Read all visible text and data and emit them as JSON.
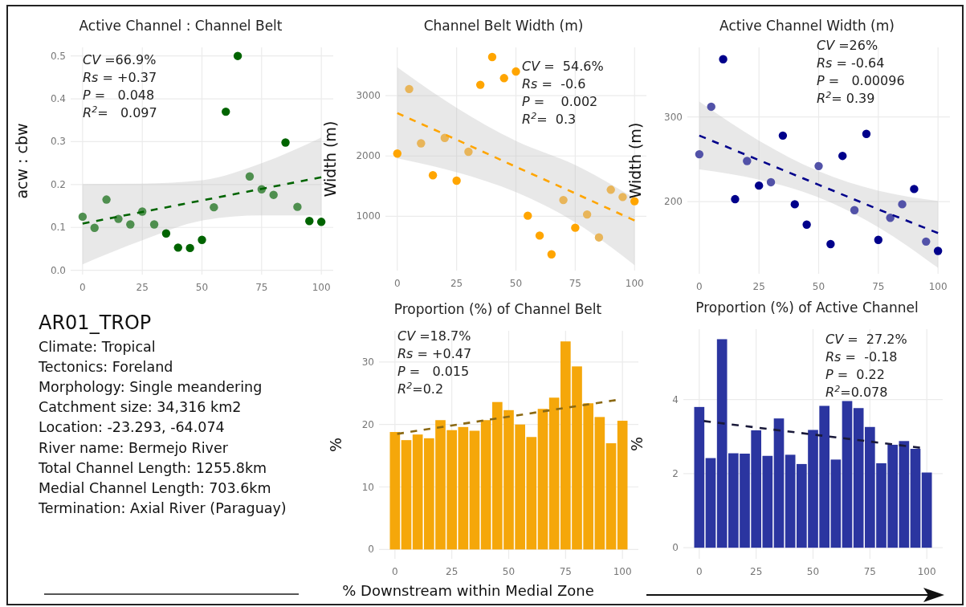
{
  "chart_data": [
    {
      "type": "scatter",
      "title": "Active Channel : Channel Belt",
      "ylabel": "acw : cbw",
      "xlim": [
        -5,
        105
      ],
      "ylim": [
        -0.01,
        0.52
      ],
      "xticks": [
        0,
        25,
        50,
        75,
        100
      ],
      "yticks": [
        {
          "value": 0,
          "label": "0.0"
        },
        0.1,
        0.2,
        0.3,
        0.4,
        0.5
      ],
      "grid": true,
      "annotations": [
        "CV =66.9%",
        "Rs = +0.37",
        "P =   0.048",
        "R$^{2}$=   0.097"
      ],
      "series": [
        {
          "type": "scatter",
          "marker": "circle",
          "x": [
            0,
            5,
            10,
            15,
            20,
            25,
            30,
            35,
            40,
            45,
            50,
            55,
            60,
            65,
            70,
            75,
            80,
            85,
            90,
            95,
            100
          ],
          "values": [
            0.125,
            0.099,
            0.165,
            0.12,
            0.107,
            0.137,
            0.107,
            0.086,
            0.053,
            0.052,
            0.071,
            0.147,
            0.37,
            0.5,
            0.219,
            0.189,
            0.176,
            0.298,
            0.148,
            0.115,
            0.113
          ],
          "colors": [
            "#4f8f4f",
            "#4f8f4f",
            "#4f8f4f",
            "#4f8f4f",
            "#4f8f4f",
            "#4f8f4f",
            "#4f8f4f",
            "#006400",
            "#006400",
            "#006400",
            "#006400",
            "#4f8f4f",
            "#006400",
            "#006400",
            "#4f8f4f",
            "#4f8f4f",
            "#4f8f4f",
            "#006400",
            "#4f8f4f",
            "#006400",
            "#006400"
          ]
        },
        {
          "type": "line",
          "line_style": "dashed",
          "color": "#006400",
          "x": [
            0,
            25,
            50,
            75,
            100
          ],
          "values": [
            0.109,
            0.136,
            0.163,
            0.19,
            0.217
          ],
          "lower": [
            0.014,
            0.07,
            0.116,
            0.128,
            0.128
          ],
          "upper": [
            0.201,
            0.202,
            0.21,
            0.25,
            0.31
          ]
        }
      ]
    },
    {
      "type": "scatter",
      "title": "Channel Belt Width (m)",
      "ylabel": "Width (m)",
      "xlim": [
        -5,
        105
      ],
      "ylim": [
        100,
        3800
      ],
      "xticks": [
        0,
        25,
        50,
        75,
        100
      ],
      "yticks": [
        1000,
        2000,
        3000
      ],
      "grid": true,
      "annotations": [
        "CV =  54.6%",
        "Rs =  -0.6",
        "P =    0.002",
        "R$^{2}$=  0.3"
      ],
      "series": [
        {
          "type": "scatter",
          "marker": "circle",
          "x": [
            0,
            5,
            10,
            15,
            20,
            25,
            30,
            35,
            40,
            45,
            50,
            55,
            60,
            65,
            70,
            75,
            80,
            85,
            90,
            95,
            100
          ],
          "values": [
            2040,
            3110,
            2210,
            1680,
            2300,
            1590,
            2070,
            3180,
            3640,
            3290,
            3400,
            1010,
            680,
            370,
            1270,
            810,
            1030,
            650,
            1440,
            1320,
            1250
          ],
          "colors": [
            "#ffa500",
            "#e8b55a",
            "#e8b55a",
            "#ffa500",
            "#e8b55a",
            "#ffa500",
            "#e8b55a",
            "#ffa500",
            "#ffa500",
            "#ffa500",
            "#ffa500",
            "#ffa500",
            "#ffa500",
            "#ffa500",
            "#e8b55a",
            "#ffa500",
            "#e8b55a",
            "#e8b55a",
            "#e8b55a",
            "#e8b55a",
            "#ffa500"
          ]
        },
        {
          "type": "line",
          "line_style": "dashed",
          "color": "#ffa500",
          "x": [
            0,
            25,
            50,
            75,
            100
          ],
          "values": [
            2710,
            2270,
            1820,
            1380,
            930
          ],
          "lower": [
            1960,
            1730,
            1400,
            900,
            190
          ],
          "upper": [
            3470,
            2800,
            2250,
            1850,
            1300
          ]
        }
      ]
    },
    {
      "type": "scatter",
      "title": "Active Channel Width (m)",
      "ylabel": "Width (m)",
      "xlim": [
        -5,
        105
      ],
      "ylim": [
        115,
        382
      ],
      "xticks": [
        0,
        25,
        50,
        75,
        100
      ],
      "yticks": [
        200,
        300
      ],
      "grid": true,
      "annotations": [
        "CV =26%",
        "Rs = -0.64",
        "P =   0.00096",
        "R$^{2}$= 0.39"
      ],
      "series": [
        {
          "type": "scatter",
          "marker": "circle",
          "x": [
            0,
            5,
            10,
            15,
            20,
            25,
            30,
            35,
            40,
            45,
            50,
            55,
            60,
            65,
            70,
            75,
            80,
            85,
            90,
            95,
            100
          ],
          "values": [
            256,
            312,
            368,
            203,
            248,
            219,
            223,
            278,
            197,
            173,
            242,
            150,
            254,
            190,
            280,
            155,
            181,
            197,
            215,
            153,
            142
          ],
          "colors": [
            "#5252a8",
            "#5252a8",
            "#00008b",
            "#00008b",
            "#5252a8",
            "#00008b",
            "#5252a8",
            "#00008b",
            "#00008b",
            "#00008b",
            "#5252a8",
            "#00008b",
            "#00008b",
            "#5252a8",
            "#00008b",
            "#00008b",
            "#5252a8",
            "#5252a8",
            "#00008b",
            "#5252a8",
            "#00008b"
          ]
        },
        {
          "type": "line",
          "line_style": "dashed",
          "color": "#00008b",
          "x": [
            0,
            25,
            50,
            75,
            100
          ],
          "values": [
            278,
            249,
            220,
            191,
            163
          ],
          "lower": [
            238,
            226,
            205,
            170,
            122
          ],
          "upper": [
            318,
            272,
            236,
            213,
            201
          ]
        }
      ]
    },
    {
      "type": "other",
      "title": "AR01_TROP",
      "annotations": [
        "Climate: Tropical",
        "Tectonics: Foreland",
        "Morphology: Single meandering",
        "Catchment size: 34,316 km2",
        "Location: -23.293, -64.074",
        "River name: Bermejo River",
        "Total Channel Length: 1255.8km",
        "Medial Channel Length: 703.6km",
        "Termination: Axial River (Paraguay)"
      ]
    },
    {
      "type": "bar",
      "title": "Proportion (%) of Channel Belt",
      "xlabel": "% Downstream within Medial Zone",
      "ylabel": "%",
      "xlim": [
        -7,
        107
      ],
      "ylim": [
        -1.5,
        35
      ],
      "xticks": [
        0,
        25,
        50,
        75,
        100
      ],
      "yticks": [
        0,
        10,
        20,
        30
      ],
      "grid": true,
      "annotations": [
        "CV =18.7%",
        "Rs = +0.47",
        "P =   0.015",
        "R$^{2}$=0.2"
      ],
      "series": [
        {
          "type": "bar",
          "color": "#f5a70a",
          "x": [
            0,
            5,
            10,
            15,
            20,
            25,
            30,
            35,
            40,
            45,
            50,
            55,
            60,
            65,
            70,
            75,
            80,
            85,
            90,
            95,
            100
          ],
          "values": [
            18.8,
            17.5,
            18.4,
            17.8,
            20.7,
            19.1,
            19.6,
            19.0,
            20.7,
            23.6,
            22.3,
            20.0,
            18.0,
            22.5,
            24.3,
            33.3,
            29.3,
            23.4,
            21.2,
            17.0,
            20.6
          ]
        },
        {
          "type": "line",
          "line_style": "dashed",
          "color": "#8b6914",
          "x": [
            1,
            97
          ],
          "values": [
            18.5,
            23.9
          ]
        }
      ]
    },
    {
      "type": "bar",
      "title": "Proportion (%) of Active Channel",
      "ylabel": "%",
      "xlim": [
        -7,
        107
      ],
      "ylim": [
        -0.3,
        5.9
      ],
      "xticks": [
        0,
        25,
        50,
        75,
        100
      ],
      "yticks": [
        0,
        2,
        4
      ],
      "grid": true,
      "annotations": [
        "CV =  27.2%",
        "Rs =  -0.18",
        "P =  0.22",
        "R$^{2}$=0.078"
      ],
      "series": [
        {
          "type": "bar",
          "color": "#2b35a0",
          "x": [
            0,
            5,
            10,
            15,
            20,
            25,
            30,
            35,
            40,
            45,
            50,
            55,
            60,
            65,
            70,
            75,
            80,
            85,
            90,
            95,
            100
          ],
          "values": [
            3.8,
            2.42,
            5.63,
            2.55,
            2.54,
            3.17,
            2.48,
            3.49,
            2.51,
            2.26,
            3.18,
            3.83,
            2.38,
            3.96,
            3.77,
            3.26,
            2.28,
            2.78,
            2.88,
            2.67,
            2.03
          ]
        },
        {
          "type": "line",
          "line_style": "dashed",
          "color": "#1a1a3a",
          "x": [
            2,
            97
          ],
          "values": [
            3.42,
            2.7
          ]
        }
      ]
    }
  ]
}
